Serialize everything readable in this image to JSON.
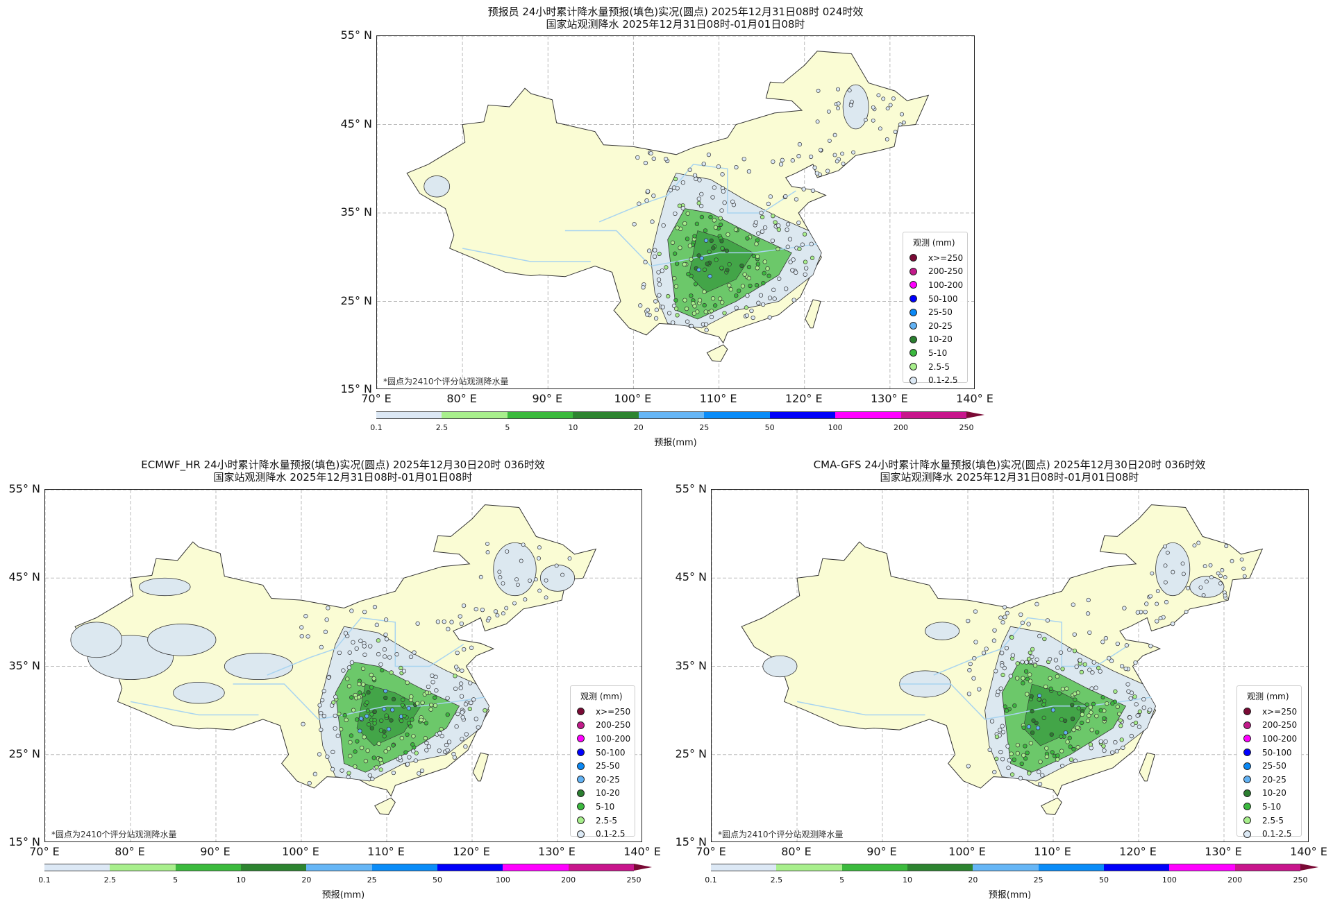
{
  "panels": [
    {
      "id": "forecaster",
      "title_line1": "预报员 24小时累计降水量预报(填色)实况(圆点) 2025年12月31日08时 024时效",
      "title_line2": "国家站观测降水 2025年12月31日08时-01月01日08时",
      "note": "*圆点为2410个评分站观测降水量",
      "model": "forecaster"
    },
    {
      "id": "ecmwf",
      "title_line1": "ECMWF_HR 24小时累计降水量预报(填色)实况(圆点) 2025年12月30日20时 036时效",
      "title_line2": "国家站观测降水 2025年12月31日08时-01月01日08时",
      "note": "*圆点为2410个评分站观测降水量",
      "model": "ecmwf"
    },
    {
      "id": "cmagfs",
      "title_line1": "CMA-GFS 24小时累计降水量预报(填色)实况(圆点) 2025年12月30日20时 036时效",
      "title_line2": "国家站观测降水 2025年12月31日08时-01月01日08时",
      "note": "*圆点为2410个评分站观测降水量",
      "model": "cmagfs"
    }
  ],
  "axes": {
    "lon_range": [
      70,
      140
    ],
    "lat_range": [
      15,
      55
    ],
    "lon_ticks": [
      {
        "v": 70,
        "label": "70° E"
      },
      {
        "v": 80,
        "label": "80° E"
      },
      {
        "v": 90,
        "label": "90° E"
      },
      {
        "v": 100,
        "label": "100° E"
      },
      {
        "v": 110,
        "label": "110° E"
      },
      {
        "v": 120,
        "label": "120° E"
      },
      {
        "v": 130,
        "label": "130° E"
      },
      {
        "v": 140,
        "label": "140° E"
      }
    ],
    "lat_ticks": [
      {
        "v": 55,
        "label": "55° N"
      },
      {
        "v": 45,
        "label": "45° N"
      },
      {
        "v": 35,
        "label": "35° N"
      },
      {
        "v": 25,
        "label": "25° N"
      },
      {
        "v": 15,
        "label": "15° N"
      }
    ]
  },
  "legend": {
    "title": "观测 (mm)",
    "items": [
      {
        "label": "x>=250",
        "color": "#7a0a35"
      },
      {
        "label": "200-250",
        "color": "#c21a8a"
      },
      {
        "label": "100-200",
        "color": "#ff00ff"
      },
      {
        "label": "50-100",
        "color": "#0000ff"
      },
      {
        "label": "25-50",
        "color": "#0a88f5"
      },
      {
        "label": "20-25",
        "color": "#62b2f4"
      },
      {
        "label": "10-20",
        "color": "#2b7e30"
      },
      {
        "label": "5-10",
        "color": "#3bb83e"
      },
      {
        "label": "2.5-5",
        "color": "#a7ee8b"
      },
      {
        "label": "0.1-2.5",
        "color": "#dce9f5"
      }
    ]
  },
  "colorbar": {
    "label": "预报(mm)",
    "ticks": [
      "0.1",
      "2.5",
      "5",
      "10",
      "20",
      "25",
      "50",
      "100",
      "200",
      "250"
    ],
    "colors": [
      "#dce8f5",
      "#a8ef8c",
      "#3bba3d",
      "#2d8430",
      "#66b6f6",
      "#0a8cf8",
      "#0000fa",
      "#ff00ff",
      "#c8158c"
    ],
    "extend_color": "#7a0a35"
  },
  "map_colors": {
    "land": "#fafcd4",
    "light_rain": "#dce8f0",
    "moderate_rain": "#6cc86a",
    "heavy_rain": "#3a9c40",
    "river": "#a8d4f0",
    "grid": "#bbbbbb"
  },
  "chart_data": {
    "type": "map",
    "description_fields": "forecast precipitation fill + observed station dots",
    "lon_range": [
      70,
      140
    ],
    "lat_range": [
      15,
      55
    ],
    "station_count": 2410
  }
}
